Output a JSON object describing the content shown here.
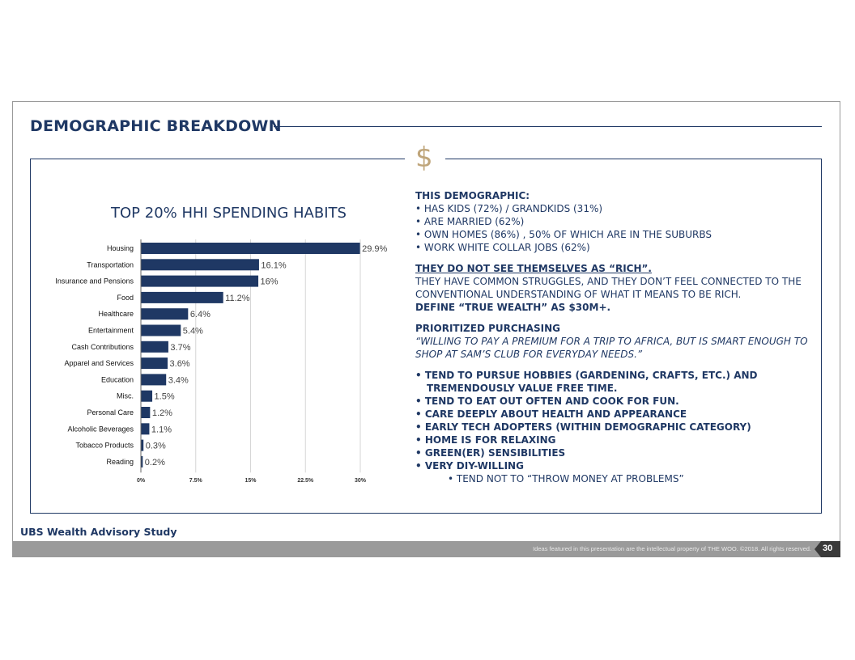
{
  "page": {
    "title": "DEMOGRAPHIC BREAKDOWN",
    "dollar_symbol": "$",
    "source": "UBS Wealth Advisory Study",
    "footer_text": "Ideas featured in this presentation are the intellectual property of THE WOO. ©2018. All rights reserved.",
    "page_number": "30"
  },
  "colors": {
    "bar": "#1f3864",
    "accent_gold": "#bfa57a"
  },
  "chart_data": {
    "type": "bar",
    "orientation": "horizontal",
    "title": "TOP 20% HHI SPENDING HABITS",
    "categories": [
      "Housing",
      "Transportation",
      "Insurance and Pensions",
      "Food",
      "Healthcare",
      "Entertainment",
      "Cash Contributions",
      "Apparel and Services",
      "Education",
      "Misc.",
      "Personal Care",
      "Alcoholic Beverages",
      "Tobacco Products",
      "Reading"
    ],
    "values": [
      29.9,
      16.1,
      16,
      11.2,
      6.4,
      5.4,
      3.7,
      3.6,
      3.4,
      1.5,
      1.2,
      1.1,
      0.3,
      0.2
    ],
    "value_labels": [
      "29.9%",
      "16.1%",
      "16%",
      "11.2%",
      "6.4%",
      "5.4%",
      "3.7%",
      "3.6%",
      "3.4%",
      "1.5%",
      "1.2%",
      "1.1%",
      "0.3%",
      "0.2%"
    ],
    "xlim": [
      0,
      30
    ],
    "xticks": [
      0,
      7.5,
      15,
      22.5,
      30
    ],
    "xtick_labels": [
      "0%",
      "7.5%",
      "15%",
      "22.5%",
      "30%"
    ],
    "grid": true
  },
  "right": {
    "demo_heading": "THIS DEMOGRAPHIC:",
    "demo_items": [
      "• HAS KIDS (72%) / GRANDKIDS (31%)",
      "• ARE MARRIED (62%)",
      "• OWN HOMES (86%) , 50% OF WHICH ARE IN THE SUBURBS",
      "• WORK WHITE COLLAR JOBS (62%)"
    ],
    "rich_heading": "THEY DO NOT SEE THEMSELVES AS “RICH”.",
    "rich_body": "THEY HAVE COMMON STRUGGLES, AND THEY DON’T FEEL CONNECTED TO THE CONVENTIONAL UNDERSTANDING OF WHAT IT MEANS TO BE RICH.",
    "rich_define": "DEFINE “TRUE WEALTH” AS $30M+.",
    "purchasing_heading": "PRIORITIZED PURCHASING",
    "purchasing_quote": "“WILLING TO PAY A PREMIUM FOR A TRIP TO AFRICA, BUT IS SMART ENOUGH TO SHOP AT SAM’S CLUB FOR EVERYDAY NEEDS.”",
    "traits": [
      "• TEND TO PURSUE HOBBIES (GARDENING, CRAFTS, ETC.) AND TREMENDOUSLY VALUE FREE TIME.",
      "• TEND TO EAT OUT OFTEN AND COOK FOR FUN.",
      "• CARE DEEPLY ABOUT HEALTH AND APPEARANCE",
      "• EARLY TECH ADOPTERS (WITHIN DEMOGRAPHIC CATEGORY)",
      "• HOME IS FOR RELAXING",
      "• GREEN(ER) SENSIBILITIES",
      "• VERY DIY-WILLING"
    ],
    "sub_trait": "• TEND NOT TO “THROW MONEY AT PROBLEMS”"
  }
}
